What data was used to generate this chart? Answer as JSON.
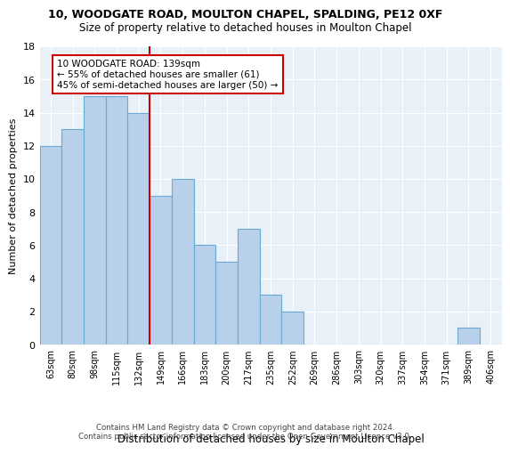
{
  "title1": "10, WOODGATE ROAD, MOULTON CHAPEL, SPALDING, PE12 0XF",
  "title2": "Size of property relative to detached houses in Moulton Chapel",
  "xlabel": "Distribution of detached houses by size in Moulton Chapel",
  "ylabel": "Number of detached properties",
  "categories": [
    "63sqm",
    "80sqm",
    "98sqm",
    "115sqm",
    "132sqm",
    "149sqm",
    "166sqm",
    "183sqm",
    "200sqm",
    "217sqm",
    "235sqm",
    "252sqm",
    "269sqm",
    "286sqm",
    "303sqm",
    "320sqm",
    "337sqm",
    "354sqm",
    "371sqm",
    "389sqm",
    "406sqm"
  ],
  "values": [
    12,
    13,
    15,
    15,
    14,
    9,
    10,
    6,
    5,
    7,
    3,
    2,
    0,
    0,
    0,
    0,
    0,
    0,
    0,
    1,
    0
  ],
  "bar_color": "#b8d0ea",
  "bar_edge_color": "#6aaad4",
  "vline_color": "#cc0000",
  "annotation_text": "10 WOODGATE ROAD: 139sqm\n← 55% of detached houses are smaller (61)\n45% of semi-detached houses are larger (50) →",
  "annotation_box_color": "#ffffff",
  "annotation_box_edge_color": "#cc0000",
  "ylim": [
    0,
    18
  ],
  "yticks": [
    0,
    2,
    4,
    6,
    8,
    10,
    12,
    14,
    16,
    18
  ],
  "footer1": "Contains HM Land Registry data © Crown copyright and database right 2024.",
  "footer2": "Contains public sector information licensed under the Open Government Licence v3.0.",
  "bg_color": "#e8f0f8",
  "grid_color": "#ffffff",
  "title1_fontsize": 9,
  "title2_fontsize": 8.5
}
